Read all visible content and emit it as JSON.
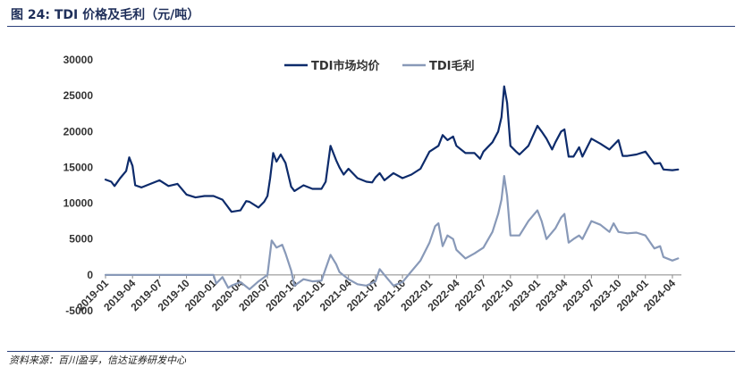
{
  "header": {
    "title": "图 24:  TDI 价格及毛利（元/吨）"
  },
  "footer": {
    "source": "资料来源：百川盈孚，信达证券研发中心"
  },
  "chart_data": {
    "type": "line",
    "ylim": [
      -5000,
      30000
    ],
    "yticks": [
      -5000,
      0,
      5000,
      10000,
      15000,
      20000,
      25000,
      30000
    ],
    "ytick_labels": [
      "-5000",
      "0",
      "5000",
      "10000",
      "15000",
      "20000",
      "25000",
      "30000"
    ],
    "x_start": "2019-01",
    "x_end": "2024-05",
    "xtick_labels": [
      "2019-01",
      "2019-04",
      "2019-07",
      "2019-10",
      "2020-01",
      "2020-04",
      "2020-07",
      "2020-10",
      "2021-01",
      "2021-04",
      "2021-07",
      "2021-10",
      "2022-01",
      "2022-04",
      "2022-07",
      "2022-10",
      "2023-01",
      "2023-04",
      "2023-07",
      "2023-10",
      "2024-01",
      "2024-04"
    ],
    "legend_position": "top-center",
    "series": [
      {
        "name": "TDI市场均价",
        "color": "#0d2b6b",
        "points": [
          [
            "2019-01",
            13300
          ],
          [
            "2019-01-20",
            13000
          ],
          [
            "2019-02",
            12400
          ],
          [
            "2019-02-20",
            13500
          ],
          [
            "2019-03-10",
            14500
          ],
          [
            "2019-03-20",
            16400
          ],
          [
            "2019-04",
            15200
          ],
          [
            "2019-04-10",
            12500
          ],
          [
            "2019-05",
            12200
          ],
          [
            "2019-06",
            12700
          ],
          [
            "2019-07",
            13200
          ],
          [
            "2019-08",
            12400
          ],
          [
            "2019-09",
            12700
          ],
          [
            "2019-10",
            11200
          ],
          [
            "2019-11",
            10800
          ],
          [
            "2019-12",
            11000
          ],
          [
            "2020-01",
            11000
          ],
          [
            "2020-02",
            10500
          ],
          [
            "2020-03",
            8800
          ],
          [
            "2020-04",
            9000
          ],
          [
            "2020-04-20",
            10300
          ],
          [
            "2020-05",
            10200
          ],
          [
            "2020-06",
            9400
          ],
          [
            "2020-06-20",
            10200
          ],
          [
            "2020-07",
            11000
          ],
          [
            "2020-07-10",
            13500
          ],
          [
            "2020-07-20",
            17000
          ],
          [
            "2020-08",
            15800
          ],
          [
            "2020-08-15",
            16800
          ],
          [
            "2020-09",
            15600
          ],
          [
            "2020-09-20",
            12300
          ],
          [
            "2020-10",
            11700
          ],
          [
            "2020-11",
            12500
          ],
          [
            "2020-12",
            12000
          ],
          [
            "2021-01",
            12000
          ],
          [
            "2021-01-15",
            13000
          ],
          [
            "2021-02",
            18000
          ],
          [
            "2021-02-20",
            16000
          ],
          [
            "2021-03",
            15000
          ],
          [
            "2021-03-15",
            14000
          ],
          [
            "2021-04",
            14800
          ],
          [
            "2021-05",
            13500
          ],
          [
            "2021-06",
            13000
          ],
          [
            "2021-06-20",
            12900
          ],
          [
            "2021-07",
            13600
          ],
          [
            "2021-07-15",
            14200
          ],
          [
            "2021-08",
            13200
          ],
          [
            "2021-09",
            14200
          ],
          [
            "2021-10",
            13500
          ],
          [
            "2021-11",
            14000
          ],
          [
            "2021-12",
            14800
          ],
          [
            "2022-01",
            17200
          ],
          [
            "2022-02",
            18000
          ],
          [
            "2022-02-15",
            19500
          ],
          [
            "2022-03",
            18800
          ],
          [
            "2022-03-20",
            19300
          ],
          [
            "2022-04",
            18000
          ],
          [
            "2022-05",
            17000
          ],
          [
            "2022-06",
            17000
          ],
          [
            "2022-06-20",
            16200
          ],
          [
            "2022-07",
            17200
          ],
          [
            "2022-08",
            18500
          ],
          [
            "2022-08-20",
            20000
          ],
          [
            "2022-09",
            22000
          ],
          [
            "2022-09-10",
            26300
          ],
          [
            "2022-09-20",
            24000
          ],
          [
            "2022-10",
            18000
          ],
          [
            "2022-10-20",
            17200
          ],
          [
            "2022-11",
            16800
          ],
          [
            "2022-12",
            18000
          ],
          [
            "2023-01",
            20800
          ],
          [
            "2023-01-15",
            20000
          ],
          [
            "2023-02",
            19000
          ],
          [
            "2023-02-20",
            17500
          ],
          [
            "2023-03",
            18500
          ],
          [
            "2023-03-20",
            20000
          ],
          [
            "2023-04",
            20300
          ],
          [
            "2023-04-15",
            16500
          ],
          [
            "2023-05",
            16500
          ],
          [
            "2023-05-20",
            17800
          ],
          [
            "2023-06",
            16500
          ],
          [
            "2023-07",
            19000
          ],
          [
            "2023-08",
            18300
          ],
          [
            "2023-09",
            17500
          ],
          [
            "2023-10",
            18800
          ],
          [
            "2023-10-15",
            16600
          ],
          [
            "2023-11",
            16600
          ],
          [
            "2023-12",
            16800
          ],
          [
            "2024-01",
            17200
          ],
          [
            "2024-02",
            15500
          ],
          [
            "2024-02-20",
            15600
          ],
          [
            "2024-03",
            14700
          ],
          [
            "2024-04",
            14600
          ],
          [
            "2024-04-20",
            14700
          ]
        ]
      },
      {
        "name": "TDI毛利",
        "color": "#8899b8",
        "points": [
          [
            "2019-01",
            0
          ],
          [
            "2020-01",
            0
          ],
          [
            "2020-01-10",
            -1200
          ],
          [
            "2020-02",
            -300
          ],
          [
            "2020-02-20",
            -1800
          ],
          [
            "2020-03",
            -1500
          ],
          [
            "2020-04",
            -1000
          ],
          [
            "2020-05",
            -2000
          ],
          [
            "2020-06",
            -900
          ],
          [
            "2020-07",
            0
          ],
          [
            "2020-07-15",
            4800
          ],
          [
            "2020-08",
            3800
          ],
          [
            "2020-08-20",
            4200
          ],
          [
            "2020-09",
            3000
          ],
          [
            "2020-09-20",
            600
          ],
          [
            "2020-10",
            -1500
          ],
          [
            "2020-11",
            -600
          ],
          [
            "2020-12",
            -900
          ],
          [
            "2021-01",
            -800
          ],
          [
            "2021-02",
            2800
          ],
          [
            "2021-02-20",
            1500
          ],
          [
            "2021-03",
            400
          ],
          [
            "2021-04",
            -600
          ],
          [
            "2021-05",
            -1300
          ],
          [
            "2021-06",
            -1500
          ],
          [
            "2021-07",
            -900
          ],
          [
            "2021-07-15",
            800
          ],
          [
            "2021-08",
            0
          ],
          [
            "2021-09",
            -1500
          ],
          [
            "2021-10",
            -1000
          ],
          [
            "2021-11",
            500
          ],
          [
            "2021-12",
            2000
          ],
          [
            "2022-01",
            4500
          ],
          [
            "2022-01-20",
            6800
          ],
          [
            "2022-02",
            7200
          ],
          [
            "2022-02-15",
            4000
          ],
          [
            "2022-03",
            5500
          ],
          [
            "2022-03-20",
            5000
          ],
          [
            "2022-04",
            3500
          ],
          [
            "2022-05",
            2300
          ],
          [
            "2022-06",
            3000
          ],
          [
            "2022-07",
            3800
          ],
          [
            "2022-08",
            6000
          ],
          [
            "2022-08-20",
            8500
          ],
          [
            "2022-09",
            10500
          ],
          [
            "2022-09-10",
            13800
          ],
          [
            "2022-09-20",
            11000
          ],
          [
            "2022-10",
            5500
          ],
          [
            "2022-11",
            5500
          ],
          [
            "2022-12",
            7500
          ],
          [
            "2023-01",
            9000
          ],
          [
            "2023-01-15",
            7500
          ],
          [
            "2023-02",
            5000
          ],
          [
            "2023-03",
            6500
          ],
          [
            "2023-03-20",
            8000
          ],
          [
            "2023-04",
            8500
          ],
          [
            "2023-04-15",
            4500
          ],
          [
            "2023-05",
            5000
          ],
          [
            "2023-05-20",
            5500
          ],
          [
            "2023-06",
            5000
          ],
          [
            "2023-07",
            7500
          ],
          [
            "2023-08",
            7000
          ],
          [
            "2023-09",
            6000
          ],
          [
            "2023-09-15",
            7200
          ],
          [
            "2023-10",
            6000
          ],
          [
            "2023-11",
            5800
          ],
          [
            "2023-12",
            5900
          ],
          [
            "2024-01",
            5500
          ],
          [
            "2024-02",
            3700
          ],
          [
            "2024-02-20",
            4000
          ],
          [
            "2024-03",
            2500
          ],
          [
            "2024-04",
            2000
          ],
          [
            "2024-04-20",
            2300
          ]
        ]
      }
    ]
  }
}
